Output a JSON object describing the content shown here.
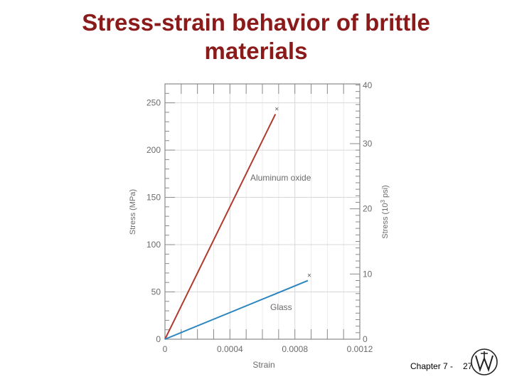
{
  "title_lines": [
    "Stress-strain behavior of brittle",
    "materials"
  ],
  "footer": {
    "chapter": "Chapter 7 -",
    "page": "27"
  },
  "chart_data": {
    "type": "line",
    "xlabel": "Strain",
    "ylabel": "Stress (MPa)",
    "y2label_main": "Stress (10",
    "y2label_sup": "3",
    "y2label_end": " psi)",
    "xlim": [
      0,
      0.0012
    ],
    "ylim": [
      0,
      270
    ],
    "xticks": [
      0,
      0.0004,
      0.0008,
      0.0012
    ],
    "xtick_labels": [
      "0",
      "0.0004",
      "0.0008",
      "0.0012"
    ],
    "yticks": [
      0,
      50,
      100,
      150,
      200,
      250
    ],
    "ytick_labels": [
      "0",
      "50",
      "100",
      "150",
      "200",
      "250"
    ],
    "y2ticks": [
      0,
      10,
      20,
      30,
      40
    ],
    "y2tick_labels": [
      "0",
      "10",
      "20",
      "30",
      "40"
    ],
    "grid": true,
    "series": [
      {
        "name": "Aluminum oxide",
        "color": "#b03a2e",
        "x": [
          0,
          0.00068
        ],
        "y": [
          0,
          238
        ],
        "marker_end": "×"
      },
      {
        "name": "Glass",
        "color": "#2e86c1",
        "x": [
          0,
          0.00088
        ],
        "y": [
          0,
          62
        ],
        "marker_end": "×"
      }
    ]
  }
}
